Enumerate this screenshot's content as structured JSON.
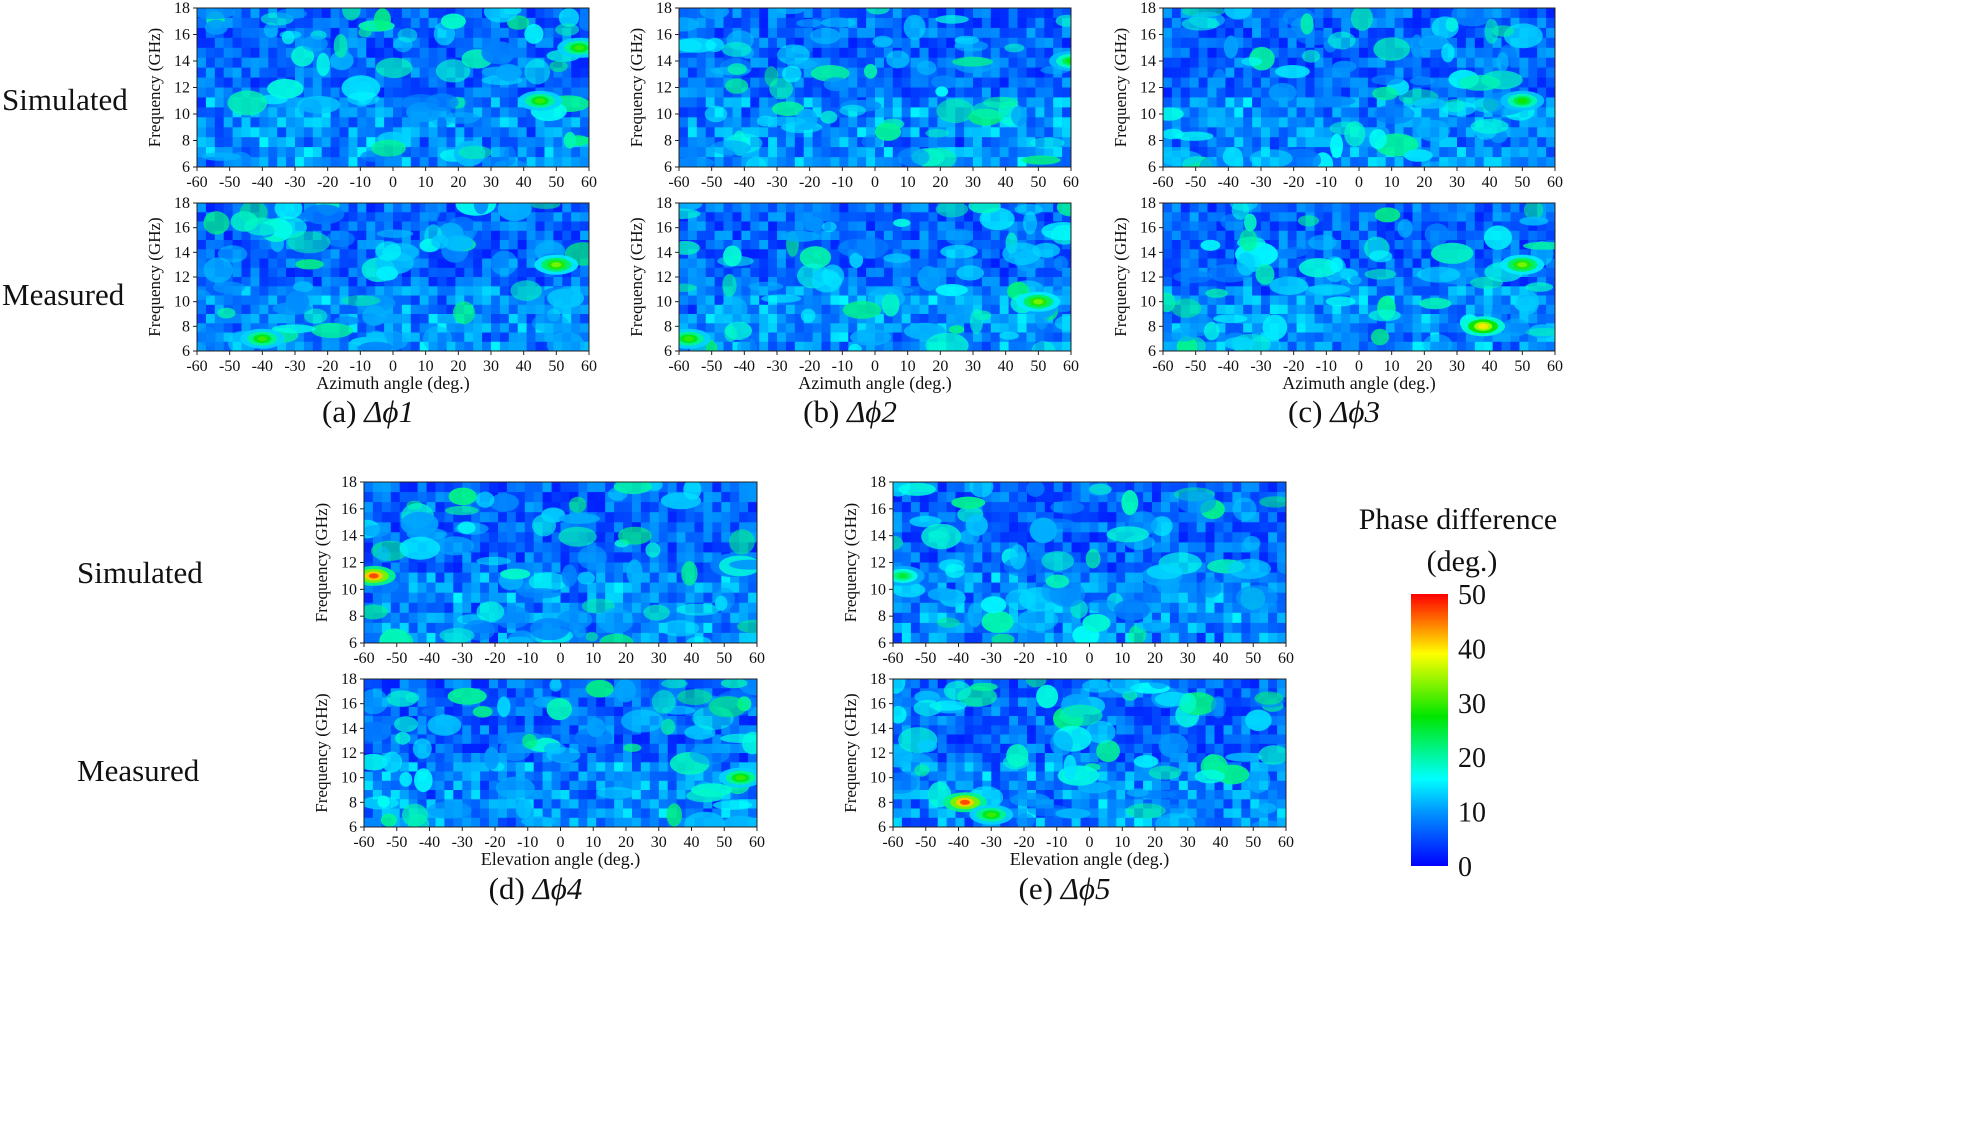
{
  "chart_data": {
    "type": "heatmap",
    "color_scale": {
      "title_line1": "Phase  difference",
      "title_line2": "(deg.)",
      "range": [
        0,
        50
      ],
      "ticks": [
        0,
        10,
        20,
        30,
        40,
        50
      ],
      "colors": [
        "#0000ff",
        "#0096ff",
        "#00ffff",
        "#00e600",
        "#ffff00",
        "#ff0000"
      ]
    },
    "y_axis": {
      "label": "Frequency (GHz)",
      "range": [
        6,
        18
      ],
      "ticks": [
        6,
        8,
        10,
        12,
        14,
        16,
        18
      ]
    },
    "x_ticks": [
      -60,
      -50,
      -40,
      -30,
      -20,
      -10,
      0,
      10,
      20,
      30,
      40,
      50,
      60
    ],
    "row_labels": {
      "simulated": "Simulated",
      "measured": "Measured"
    },
    "groups": [
      {
        "id": "a",
        "caption_prefix": "(a)",
        "caption_symbol": "Δϕ1",
        "xlabel": "Azimuth angle (deg.)",
        "xrange": [
          -60,
          60
        ]
      },
      {
        "id": "b",
        "caption_prefix": "(b)",
        "caption_symbol": "Δϕ2",
        "xlabel": "Azimuth angle (deg.)",
        "xrange": [
          -60,
          60
        ]
      },
      {
        "id": "c",
        "caption_prefix": "(c)",
        "caption_symbol": "Δϕ3",
        "xlabel": "Azimuth angle (deg.)",
        "xrange": [
          -60,
          60
        ]
      },
      {
        "id": "d",
        "caption_prefix": "(d)",
        "caption_symbol": "Δϕ4",
        "xlabel": "Elevation angle (deg.)",
        "xrange": [
          -60,
          60
        ]
      },
      {
        "id": "e",
        "caption_prefix": "(e)",
        "caption_symbol": "Δϕ5",
        "xlabel": "Elevation angle (deg.)",
        "xrange": [
          -60,
          60
        ]
      }
    ],
    "hotspots": [
      {
        "panel": "a-sim",
        "angle": 57,
        "freq": 15.0,
        "value": 30
      },
      {
        "panel": "a-sim",
        "angle": 45,
        "freq": 11.0,
        "value": 30
      },
      {
        "panel": "a-mea",
        "angle": 50,
        "freq": 13.0,
        "value": 33
      },
      {
        "panel": "a-mea",
        "angle": -40,
        "freq": 7.0,
        "value": 30
      },
      {
        "panel": "b-sim",
        "angle": 60,
        "freq": 14.0,
        "value": 27
      },
      {
        "panel": "b-mea",
        "angle": 50,
        "freq": 10.0,
        "value": 33
      },
      {
        "panel": "b-mea",
        "angle": -57,
        "freq": 7.0,
        "value": 30
      },
      {
        "panel": "c-sim",
        "angle": 50,
        "freq": 11.0,
        "value": 28
      },
      {
        "panel": "c-mea",
        "angle": 38,
        "freq": 8.0,
        "value": 40
      },
      {
        "panel": "c-mea",
        "angle": 50,
        "freq": 13.0,
        "value": 33
      },
      {
        "panel": "d-sim",
        "angle": -57,
        "freq": 11.0,
        "value": 47
      },
      {
        "panel": "d-mea",
        "angle": 55,
        "freq": 10.0,
        "value": 30
      },
      {
        "panel": "e-sim",
        "angle": -57,
        "freq": 11.0,
        "value": 25
      },
      {
        "panel": "e-mea",
        "angle": -38,
        "freq": 8.0,
        "value": 47
      },
      {
        "panel": "e-mea",
        "angle": -30,
        "freq": 7.0,
        "value": 30
      }
    ]
  }
}
